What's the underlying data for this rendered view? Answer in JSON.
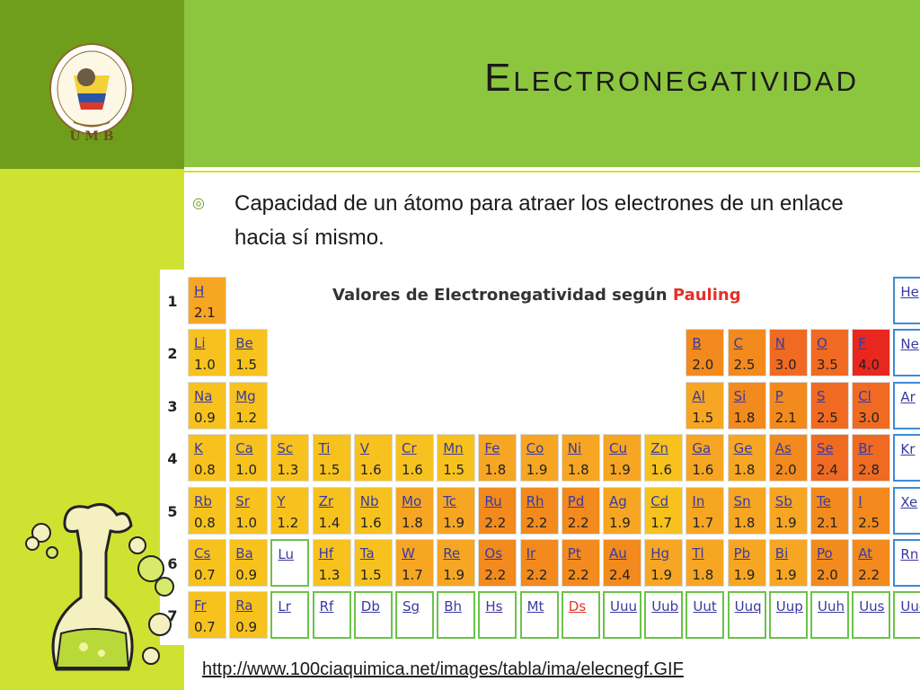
{
  "slide": {
    "title": "Electronegatividad",
    "bullet": "Capacidad de un átomo para atraer los electrones de un enlace hacia sí mismo.",
    "source_url": "http://www.100ciaquimica.net/images/tabla/ima/elecnegf.GIF"
  },
  "logo": {
    "text_top": "UNIVERSIDAD MANUELA BELTRAN",
    "text_country": "COLOMBIA",
    "letters": "U M B",
    "icon": "university-seal"
  },
  "table": {
    "title_prefix": "Valores de Electronegatividad según",
    "title_highlight": "Pauling",
    "period_numbers": [
      "1",
      "2",
      "3",
      "4",
      "5",
      "6",
      "7"
    ],
    "colors": {
      "yellow": "#f7c21e",
      "orange_light": "#f6a623",
      "orange": "#f28a1d",
      "orange_red": "#f06a22",
      "red": "#e8271f",
      "noble_border": "#3d8bd6",
      "empty_border": "#6cc24a"
    },
    "cells": [
      {
        "sym": "H",
        "en": "2.1",
        "row": 1,
        "col": 1,
        "tone": "orange_light"
      },
      {
        "sym": "He",
        "en": "",
        "row": 1,
        "col": 18,
        "tone": "noble"
      },
      {
        "sym": "Li",
        "en": "1.0",
        "row": 2,
        "col": 1,
        "tone": "yellow"
      },
      {
        "sym": "Be",
        "en": "1.5",
        "row": 2,
        "col": 2,
        "tone": "yellow"
      },
      {
        "sym": "B",
        "en": "2.0",
        "row": 2,
        "col": 13,
        "tone": "orange"
      },
      {
        "sym": "C",
        "en": "2.5",
        "row": 2,
        "col": 14,
        "tone": "orange"
      },
      {
        "sym": "N",
        "en": "3.0",
        "row": 2,
        "col": 15,
        "tone": "orange_red"
      },
      {
        "sym": "O",
        "en": "3.5",
        "row": 2,
        "col": 16,
        "tone": "orange_red"
      },
      {
        "sym": "F",
        "en": "4.0",
        "row": 2,
        "col": 17,
        "tone": "red"
      },
      {
        "sym": "Ne",
        "en": "",
        "row": 2,
        "col": 18,
        "tone": "noble"
      },
      {
        "sym": "Na",
        "en": "0.9",
        "row": 3,
        "col": 1,
        "tone": "yellow"
      },
      {
        "sym": "Mg",
        "en": "1.2",
        "row": 3,
        "col": 2,
        "tone": "yellow"
      },
      {
        "sym": "Al",
        "en": "1.5",
        "row": 3,
        "col": 13,
        "tone": "orange_light"
      },
      {
        "sym": "Si",
        "en": "1.8",
        "row": 3,
        "col": 14,
        "tone": "orange"
      },
      {
        "sym": "P",
        "en": "2.1",
        "row": 3,
        "col": 15,
        "tone": "orange"
      },
      {
        "sym": "S",
        "en": "2.5",
        "row": 3,
        "col": 16,
        "tone": "orange_red"
      },
      {
        "sym": "Cl",
        "en": "3.0",
        "row": 3,
        "col": 17,
        "tone": "orange_red"
      },
      {
        "sym": "Ar",
        "en": "",
        "row": 3,
        "col": 18,
        "tone": "noble"
      },
      {
        "sym": "K",
        "en": "0.8",
        "row": 4,
        "col": 1,
        "tone": "yellow"
      },
      {
        "sym": "Ca",
        "en": "1.0",
        "row": 4,
        "col": 2,
        "tone": "yellow"
      },
      {
        "sym": "Sc",
        "en": "1.3",
        "row": 4,
        "col": 3,
        "tone": "yellow"
      },
      {
        "sym": "Ti",
        "en": "1.5",
        "row": 4,
        "col": 4,
        "tone": "yellow"
      },
      {
        "sym": "V",
        "en": "1.6",
        "row": 4,
        "col": 5,
        "tone": "yellow"
      },
      {
        "sym": "Cr",
        "en": "1.6",
        "row": 4,
        "col": 6,
        "tone": "yellow"
      },
      {
        "sym": "Mn",
        "en": "1.5",
        "row": 4,
        "col": 7,
        "tone": "yellow"
      },
      {
        "sym": "Fe",
        "en": "1.8",
        "row": 4,
        "col": 8,
        "tone": "orange_light"
      },
      {
        "sym": "Co",
        "en": "1.9",
        "row": 4,
        "col": 9,
        "tone": "orange_light"
      },
      {
        "sym": "Ni",
        "en": "1.8",
        "row": 4,
        "col": 10,
        "tone": "orange_light"
      },
      {
        "sym": "Cu",
        "en": "1.9",
        "row": 4,
        "col": 11,
        "tone": "orange_light"
      },
      {
        "sym": "Zn",
        "en": "1.6",
        "row": 4,
        "col": 12,
        "tone": "yellow"
      },
      {
        "sym": "Ga",
        "en": "1.6",
        "row": 4,
        "col": 13,
        "tone": "orange_light"
      },
      {
        "sym": "Ge",
        "en": "1.8",
        "row": 4,
        "col": 14,
        "tone": "orange_light"
      },
      {
        "sym": "As",
        "en": "2.0",
        "row": 4,
        "col": 15,
        "tone": "orange"
      },
      {
        "sym": "Se",
        "en": "2.4",
        "row": 4,
        "col": 16,
        "tone": "orange_red"
      },
      {
        "sym": "Br",
        "en": "2.8",
        "row": 4,
        "col": 17,
        "tone": "orange_red"
      },
      {
        "sym": "Kr",
        "en": "",
        "row": 4,
        "col": 18,
        "tone": "noble"
      },
      {
        "sym": "Rb",
        "en": "0.8",
        "row": 5,
        "col": 1,
        "tone": "yellow"
      },
      {
        "sym": "Sr",
        "en": "1.0",
        "row": 5,
        "col": 2,
        "tone": "yellow"
      },
      {
        "sym": "Y",
        "en": "1.2",
        "row": 5,
        "col": 3,
        "tone": "yellow"
      },
      {
        "sym": "Zr",
        "en": "1.4",
        "row": 5,
        "col": 4,
        "tone": "yellow"
      },
      {
        "sym": "Nb",
        "en": "1.6",
        "row": 5,
        "col": 5,
        "tone": "yellow"
      },
      {
        "sym": "Mo",
        "en": "1.8",
        "row": 5,
        "col": 6,
        "tone": "orange_light"
      },
      {
        "sym": "Tc",
        "en": "1.9",
        "row": 5,
        "col": 7,
        "tone": "orange_light"
      },
      {
        "sym": "Ru",
        "en": "2.2",
        "row": 5,
        "col": 8,
        "tone": "orange"
      },
      {
        "sym": "Rh",
        "en": "2.2",
        "row": 5,
        "col": 9,
        "tone": "orange"
      },
      {
        "sym": "Pd",
        "en": "2.2",
        "row": 5,
        "col": 10,
        "tone": "orange"
      },
      {
        "sym": "Ag",
        "en": "1.9",
        "row": 5,
        "col": 11,
        "tone": "orange_light"
      },
      {
        "sym": "Cd",
        "en": "1.7",
        "row": 5,
        "col": 12,
        "tone": "yellow"
      },
      {
        "sym": "In",
        "en": "1.7",
        "row": 5,
        "col": 13,
        "tone": "orange_light"
      },
      {
        "sym": "Sn",
        "en": "1.8",
        "row": 5,
        "col": 14,
        "tone": "orange_light"
      },
      {
        "sym": "Sb",
        "en": "1.9",
        "row": 5,
        "col": 15,
        "tone": "orange_light"
      },
      {
        "sym": "Te",
        "en": "2.1",
        "row": 5,
        "col": 16,
        "tone": "orange"
      },
      {
        "sym": "I",
        "en": "2.5",
        "row": 5,
        "col": 17,
        "tone": "orange"
      },
      {
        "sym": "Xe",
        "en": "",
        "row": 5,
        "col": 18,
        "tone": "noble"
      },
      {
        "sym": "Cs",
        "en": "0.7",
        "row": 6,
        "col": 1,
        "tone": "yellow"
      },
      {
        "sym": "Ba",
        "en": "0.9",
        "row": 6,
        "col": 2,
        "tone": "yellow"
      },
      {
        "sym": "Lu",
        "en": "",
        "row": 6,
        "col": 3,
        "tone": "empty"
      },
      {
        "sym": "Hf",
        "en": "1.3",
        "row": 6,
        "col": 4,
        "tone": "yellow"
      },
      {
        "sym": "Ta",
        "en": "1.5",
        "row": 6,
        "col": 5,
        "tone": "yellow"
      },
      {
        "sym": "W",
        "en": "1.7",
        "row": 6,
        "col": 6,
        "tone": "orange_light"
      },
      {
        "sym": "Re",
        "en": "1.9",
        "row": 6,
        "col": 7,
        "tone": "orange_light"
      },
      {
        "sym": "Os",
        "en": "2.2",
        "row": 6,
        "col": 8,
        "tone": "orange"
      },
      {
        "sym": "Ir",
        "en": "2.2",
        "row": 6,
        "col": 9,
        "tone": "orange"
      },
      {
        "sym": "Pt",
        "en": "2.2",
        "row": 6,
        "col": 10,
        "tone": "orange"
      },
      {
        "sym": "Au",
        "en": "2.4",
        "row": 6,
        "col": 11,
        "tone": "orange"
      },
      {
        "sym": "Hg",
        "en": "1.9",
        "row": 6,
        "col": 12,
        "tone": "orange_light"
      },
      {
        "sym": "Tl",
        "en": "1.8",
        "row": 6,
        "col": 13,
        "tone": "orange_light"
      },
      {
        "sym": "Pb",
        "en": "1.9",
        "row": 6,
        "col": 14,
        "tone": "orange_light"
      },
      {
        "sym": "Bi",
        "en": "1.9",
        "row": 6,
        "col": 15,
        "tone": "orange_light"
      },
      {
        "sym": "Po",
        "en": "2.0",
        "row": 6,
        "col": 16,
        "tone": "orange"
      },
      {
        "sym": "At",
        "en": "2.2",
        "row": 6,
        "col": 17,
        "tone": "orange"
      },
      {
        "sym": "Rn",
        "en": "",
        "row": 6,
        "col": 18,
        "tone": "noble"
      },
      {
        "sym": "Fr",
        "en": "0.7",
        "row": 7,
        "col": 1,
        "tone": "yellow"
      },
      {
        "sym": "Ra",
        "en": "0.9",
        "row": 7,
        "col": 2,
        "tone": "yellow"
      },
      {
        "sym": "Lr",
        "en": "",
        "row": 7,
        "col": 3,
        "tone": "empty"
      },
      {
        "sym": "Rf",
        "en": "",
        "row": 7,
        "col": 4,
        "tone": "empty"
      },
      {
        "sym": "Db",
        "en": "",
        "row": 7,
        "col": 5,
        "tone": "empty"
      },
      {
        "sym": "Sg",
        "en": "",
        "row": 7,
        "col": 6,
        "tone": "empty"
      },
      {
        "sym": "Bh",
        "en": "",
        "row": 7,
        "col": 7,
        "tone": "empty"
      },
      {
        "sym": "Hs",
        "en": "",
        "row": 7,
        "col": 8,
        "tone": "empty"
      },
      {
        "sym": "Mt",
        "en": "",
        "row": 7,
        "col": 9,
        "tone": "empty"
      },
      {
        "sym": "Ds",
        "en": "",
        "row": 7,
        "col": 10,
        "tone": "empty_ds"
      },
      {
        "sym": "Uuu",
        "en": "",
        "row": 7,
        "col": 11,
        "tone": "empty"
      },
      {
        "sym": "Uub",
        "en": "",
        "row": 7,
        "col": 12,
        "tone": "empty"
      },
      {
        "sym": "Uut",
        "en": "",
        "row": 7,
        "col": 13,
        "tone": "empty"
      },
      {
        "sym": "Uuq",
        "en": "",
        "row": 7,
        "col": 14,
        "tone": "empty"
      },
      {
        "sym": "Uup",
        "en": "",
        "row": 7,
        "col": 15,
        "tone": "empty"
      },
      {
        "sym": "Uuh",
        "en": "",
        "row": 7,
        "col": 16,
        "tone": "empty"
      },
      {
        "sym": "Uus",
        "en": "",
        "row": 7,
        "col": 17,
        "tone": "empty"
      },
      {
        "sym": "Uuo",
        "en": "",
        "row": 7,
        "col": 18,
        "tone": "empty"
      }
    ]
  },
  "decoration": {
    "icon": "chemistry-flask-icon"
  }
}
